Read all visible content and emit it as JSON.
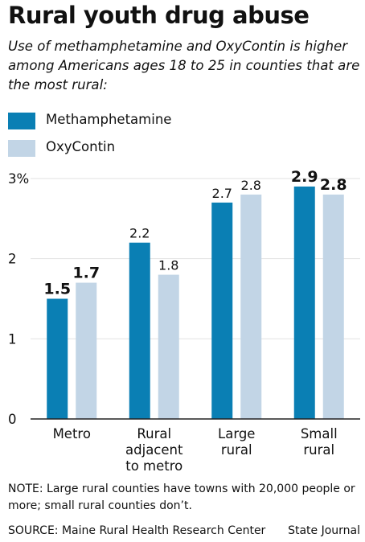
{
  "title": "Rural youth drug abuse",
  "subtitle": "Use of methamphetamine and OxyContin is higher among Americans ages 18 to 25 in counties that are the most rural:",
  "note": "NOTE: Large rural counties have towns with 20,000 people or more; small rural counties don’t.",
  "source": "SOURCE: Maine Rural Health Research Center",
  "credit": "State Journal",
  "colors": {
    "methamphetamine": "#0a7fb4",
    "oxycontin": "#c2d5e6",
    "axis": "#222222",
    "grid": "#e2e2e2"
  },
  "chart_data": {
    "type": "bar",
    "categories": [
      [
        "Metro"
      ],
      [
        "Rural",
        "adjacent",
        "to metro"
      ],
      [
        "Large",
        "rural"
      ],
      [
        "Small",
        "rural"
      ]
    ],
    "series": [
      {
        "name": "Methamphetamine",
        "values": [
          1.5,
          2.2,
          2.7,
          2.9
        ],
        "labels": [
          "1.5",
          "2.2",
          "2.7",
          "2.9"
        ],
        "bold": [
          true,
          false,
          false,
          true
        ]
      },
      {
        "name": "OxyContin",
        "values": [
          1.7,
          1.8,
          2.8,
          2.8
        ],
        "labels": [
          "1.7",
          "1.8",
          "2.8",
          "2.8"
        ],
        "bold": [
          true,
          false,
          false,
          true
        ]
      }
    ],
    "ylim": [
      0,
      3
    ],
    "yticks": [
      0,
      1,
      2,
      3
    ],
    "ytick_labels": [
      "0",
      "1",
      "2",
      "3%"
    ],
    "legend_position": "top-left",
    "grid": true
  }
}
